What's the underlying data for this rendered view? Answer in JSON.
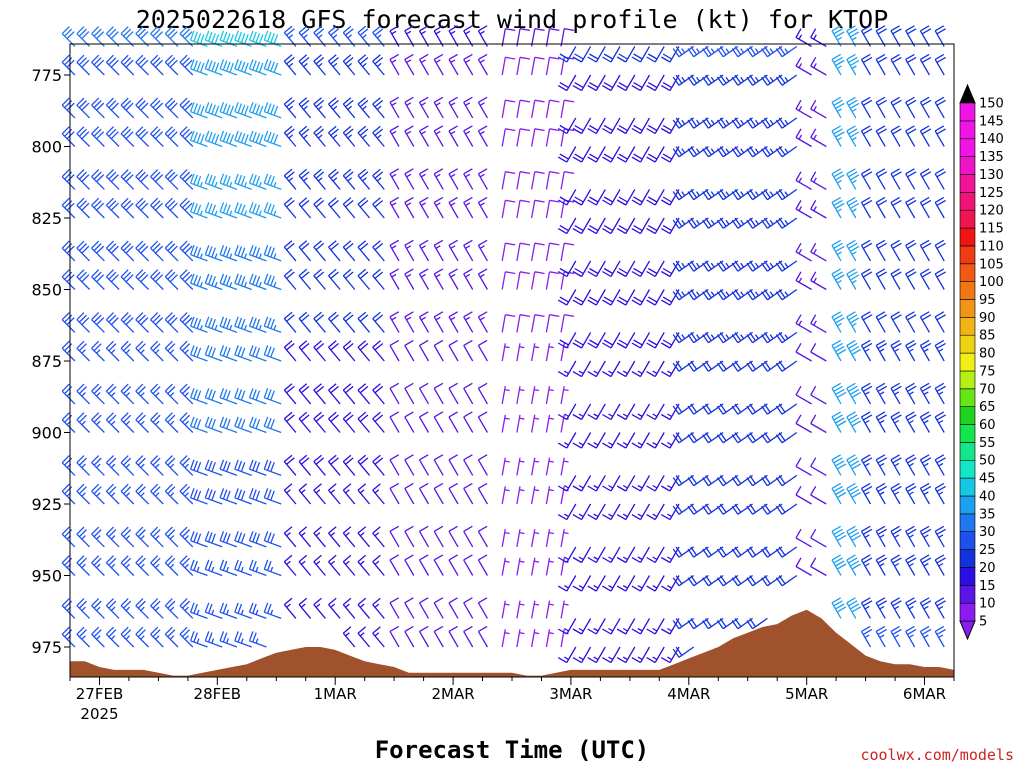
{
  "page": {
    "title": "2025022618 GFS forecast wind profile (kt) for KTOP",
    "xlabel": "Forecast Time (UTC)",
    "credit": "coolwx.com/models",
    "credit_color": "#cc2222"
  },
  "chart_data": {
    "type": "wind-barb-profile",
    "title": "2025022618 GFS forecast wind profile (kt) for KTOP",
    "xlabel": "Forecast Time (UTC)",
    "ylabel": "",
    "station": "KTOP",
    "model_run": "2025022618",
    "units": "kt",
    "x_ticks": [
      {
        "hour": 6,
        "label": "27FEB",
        "sublabel": "2025"
      },
      {
        "hour": 30,
        "label": "28FEB",
        "sublabel": ""
      },
      {
        "hour": 54,
        "label": "1MAR",
        "sublabel": ""
      },
      {
        "hour": 78,
        "label": "2MAR",
        "sublabel": ""
      },
      {
        "hour": 102,
        "label": "3MAR",
        "sublabel": ""
      },
      {
        "hour": 126,
        "label": "4MAR",
        "sublabel": ""
      },
      {
        "hour": 150,
        "label": "5MAR",
        "sublabel": ""
      },
      {
        "hour": 174,
        "label": "6MAR",
        "sublabel": ""
      }
    ],
    "xlim_hours": [
      0,
      180
    ],
    "y_ticks": [
      775,
      800,
      825,
      850,
      875,
      900,
      925,
      950,
      975
    ],
    "ylim_hpa": [
      765,
      988
    ],
    "y_reversed": true,
    "levels_hpa": [
      765,
      775,
      790,
      800,
      815,
      825,
      840,
      850,
      865,
      875,
      890,
      900,
      915,
      925,
      940,
      950,
      965,
      975
    ],
    "colorbar": {
      "ticks": [
        5,
        10,
        15,
        20,
        25,
        30,
        35,
        40,
        45,
        50,
        55,
        60,
        65,
        70,
        75,
        80,
        85,
        90,
        95,
        100,
        105,
        110,
        115,
        120,
        125,
        130,
        135,
        140,
        145,
        150
      ],
      "colors": [
        "#8a1cf0",
        "#5a14e6",
        "#2c0ee0",
        "#1432dc",
        "#1e50f0",
        "#1e78f0",
        "#1ea0f0",
        "#14c8e6",
        "#14e6c8",
        "#14e68c",
        "#14e650",
        "#1ed21e",
        "#64e614",
        "#b4f014",
        "#f0f014",
        "#f0d214",
        "#f0b414",
        "#f09614",
        "#f07814",
        "#f05a14",
        "#f03c14",
        "#f01414",
        "#f01450",
        "#f01478",
        "#f0149b",
        "#f014c8",
        "#f014e6"
      ]
    },
    "surface_pressure": [
      {
        "hour": 0,
        "hpa": 980
      },
      {
        "hour": 3,
        "hpa": 980
      },
      {
        "hour": 6,
        "hpa": 982
      },
      {
        "hour": 9,
        "hpa": 983
      },
      {
        "hour": 12,
        "hpa": 983
      },
      {
        "hour": 15,
        "hpa": 983
      },
      {
        "hour": 18,
        "hpa": 984
      },
      {
        "hour": 21,
        "hpa": 985
      },
      {
        "hour": 24,
        "hpa": 985
      },
      {
        "hour": 27,
        "hpa": 984
      },
      {
        "hour": 30,
        "hpa": 983
      },
      {
        "hour": 33,
        "hpa": 982
      },
      {
        "hour": 36,
        "hpa": 981
      },
      {
        "hour": 39,
        "hpa": 979
      },
      {
        "hour": 42,
        "hpa": 977
      },
      {
        "hour": 45,
        "hpa": 976
      },
      {
        "hour": 48,
        "hpa": 975
      },
      {
        "hour": 51,
        "hpa": 975
      },
      {
        "hour": 54,
        "hpa": 976
      },
      {
        "hour": 57,
        "hpa": 978
      },
      {
        "hour": 60,
        "hpa": 980
      },
      {
        "hour": 63,
        "hpa": 981
      },
      {
        "hour": 66,
        "hpa": 982
      },
      {
        "hour": 69,
        "hpa": 984
      },
      {
        "hour": 72,
        "hpa": 984
      },
      {
        "hour": 75,
        "hpa": 984
      },
      {
        "hour": 78,
        "hpa": 984
      },
      {
        "hour": 81,
        "hpa": 984
      },
      {
        "hour": 84,
        "hpa": 984
      },
      {
        "hour": 87,
        "hpa": 984
      },
      {
        "hour": 90,
        "hpa": 984
      },
      {
        "hour": 93,
        "hpa": 985
      },
      {
        "hour": 96,
        "hpa": 985
      },
      {
        "hour": 99,
        "hpa": 984
      },
      {
        "hour": 102,
        "hpa": 983
      },
      {
        "hour": 105,
        "hpa": 983
      },
      {
        "hour": 108,
        "hpa": 983
      },
      {
        "hour": 111,
        "hpa": 983
      },
      {
        "hour": 114,
        "hpa": 983
      },
      {
        "hour": 117,
        "hpa": 983
      },
      {
        "hour": 120,
        "hpa": 983
      },
      {
        "hour": 123,
        "hpa": 981
      },
      {
        "hour": 126,
        "hpa": 979
      },
      {
        "hour": 129,
        "hpa": 977
      },
      {
        "hour": 132,
        "hpa": 975
      },
      {
        "hour": 135,
        "hpa": 972
      },
      {
        "hour": 138,
        "hpa": 970
      },
      {
        "hour": 141,
        "hpa": 968
      },
      {
        "hour": 144,
        "hpa": 967
      },
      {
        "hour": 147,
        "hpa": 964
      },
      {
        "hour": 150,
        "hpa": 962
      },
      {
        "hour": 153,
        "hpa": 965
      },
      {
        "hour": 156,
        "hpa": 970
      },
      {
        "hour": 159,
        "hpa": 974
      },
      {
        "hour": 162,
        "hpa": 978
      },
      {
        "hour": 165,
        "hpa": 980
      },
      {
        "hour": 168,
        "hpa": 981
      },
      {
        "hour": 171,
        "hpa": 981
      },
      {
        "hour": 174,
        "hpa": 982
      },
      {
        "hour": 177,
        "hpa": 982
      },
      {
        "hour": 180,
        "hpa": 983
      }
    ],
    "wind_regimes": [
      {
        "start_hour": 0,
        "end_hour": 27,
        "direction_deg": 315,
        "speed_lower_kt": 25,
        "speed_upper_kt": 30
      },
      {
        "start_hour": 27,
        "end_hour": 45,
        "direction_deg": 290,
        "speed_lower_kt": 25,
        "speed_upper_kt": 40
      },
      {
        "start_hour": 45,
        "end_hour": 66,
        "direction_deg": 320,
        "speed_lower_kt": 15,
        "speed_upper_kt": 25
      },
      {
        "start_hour": 66,
        "end_hour": 87,
        "direction_deg": 330,
        "speed_lower_kt": 10,
        "speed_upper_kt": 15
      },
      {
        "start_hour": 87,
        "end_hour": 102,
        "direction_deg": 10,
        "speed_lower_kt": 5,
        "speed_upper_kt": 10
      },
      {
        "start_hour": 102,
        "end_hour": 126,
        "direction_deg": 210,
        "speed_lower_kt": 15,
        "speed_upper_kt": 20
      },
      {
        "start_hour": 126,
        "end_hour": 150,
        "direction_deg": 235,
        "speed_lower_kt": 20,
        "speed_upper_kt": 25
      },
      {
        "start_hour": 150,
        "end_hour": 157,
        "direction_deg": 300,
        "speed_lower_kt": 10,
        "speed_upper_kt": 15
      },
      {
        "start_hour": 157,
        "end_hour": 163,
        "direction_deg": 330,
        "speed_lower_kt": 40,
        "speed_upper_kt": 35
      },
      {
        "start_hour": 163,
        "end_hour": 180,
        "direction_deg": 330,
        "speed_lower_kt": 25,
        "speed_upper_kt": 20
      }
    ],
    "terrain_color": "#a0522d"
  }
}
